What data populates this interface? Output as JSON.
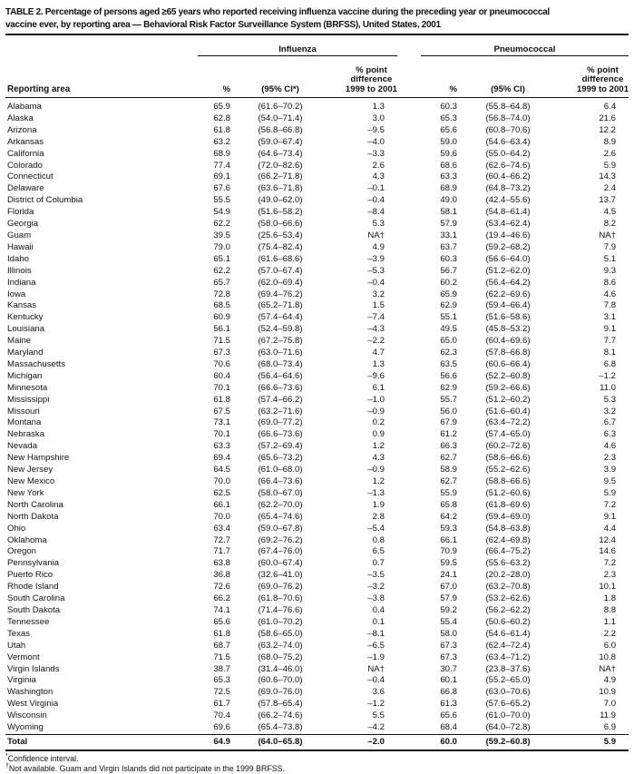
{
  "title": "TABLE 2. Percentage of persons aged ≥65 years who reported receiving influenza vaccine during the preceding year or pneumococcal\nvaccine ever, by reporting area — Behavioral Risk Factor Surveillance System (BRFSS), United States, 2001",
  "table": {
    "group_headers": [
      "Influenza",
      "Pneumococcal"
    ],
    "columns": {
      "reporting_area": "Reporting area",
      "pct": "%",
      "ci_flu": "(95% CI*)",
      "ci_pneu": "(95% CI)",
      "diff": "% point\ndifference\n1999 to 2001"
    },
    "rows": [
      {
        "area": "Alabama",
        "flu_pct": "65.9",
        "flu_ci": "(61.6–70.2)",
        "flu_diff": "1.3",
        "pneu_pct": "60.3",
        "pneu_ci": "(55.8–64.8)",
        "pneu_diff": "6.4"
      },
      {
        "area": "Alaska",
        "flu_pct": "62.8",
        "flu_ci": "(54.0–71.4)",
        "flu_diff": "3.0",
        "pneu_pct": "65.3",
        "pneu_ci": "(56.8–74.0)",
        "pneu_diff": "21.6"
      },
      {
        "area": "Arizona",
        "flu_pct": "61.8",
        "flu_ci": "(56.8–66.8)",
        "flu_diff": "–9.5",
        "pneu_pct": "65.6",
        "pneu_ci": "(60.8–70.6)",
        "pneu_diff": "12.2"
      },
      {
        "area": "Arkansas",
        "flu_pct": "63.2",
        "flu_ci": "(59.0–67.4)",
        "flu_diff": "–4.0",
        "pneu_pct": "59.0",
        "pneu_ci": "(54.6–63.4)",
        "pneu_diff": "8.9"
      },
      {
        "area": "California",
        "flu_pct": "68.9",
        "flu_ci": "(64.6–73.4)",
        "flu_diff": "–3.3",
        "pneu_pct": "59.6",
        "pneu_ci": "(55.0–64.2)",
        "pneu_diff": "2.6"
      },
      {
        "area": "Colorado",
        "flu_pct": "77.4",
        "flu_ci": "(72.0–82.6)",
        "flu_diff": "2.6",
        "pneu_pct": "68.6",
        "pneu_ci": "(62.6–74.6)",
        "pneu_diff": "5.9"
      },
      {
        "area": "Connecticut",
        "flu_pct": "69.1",
        "flu_ci": "(66.2–71.8)",
        "flu_diff": "4.3",
        "pneu_pct": "63.3",
        "pneu_ci": "(60.4–66.2)",
        "pneu_diff": "14.3"
      },
      {
        "area": "Delaware",
        "flu_pct": "67.6",
        "flu_ci": "(63.6–71.8)",
        "flu_diff": "–0.1",
        "pneu_pct": "68.9",
        "pneu_ci": "(64.8–73.2)",
        "pneu_diff": "2.4"
      },
      {
        "area": "District of Columbia",
        "flu_pct": "55.5",
        "flu_ci": "(49.0–62.0)",
        "flu_diff": "–0.4",
        "pneu_pct": "49.0",
        "pneu_ci": "(42.4–55.6)",
        "pneu_diff": "13.7"
      },
      {
        "area": "Florida",
        "flu_pct": "54.9",
        "flu_ci": "(51.6–58.2)",
        "flu_diff": "–8.4",
        "pneu_pct": "58.1",
        "pneu_ci": "(54.8–61.4)",
        "pneu_diff": "4.5"
      },
      {
        "area": "Georgia",
        "flu_pct": "62.2",
        "flu_ci": "(58.0–66.6)",
        "flu_diff": "5.3",
        "pneu_pct": "57.9",
        "pneu_ci": "(53.4–62.4)",
        "pneu_diff": "8.2"
      },
      {
        "area": "Guam",
        "flu_pct": "39.5",
        "flu_ci": "(25.6–53.4)",
        "flu_diff": "NA†",
        "pneu_pct": "33.1",
        "pneu_ci": "(19.4–46.6)",
        "pneu_diff": "NA†"
      },
      {
        "area": "Hawaii",
        "flu_pct": "79.0",
        "flu_ci": "(75.4–82.4)",
        "flu_diff": "4.9",
        "pneu_pct": "63.7",
        "pneu_ci": "(59.2–68.2)",
        "pneu_diff": "7.9"
      },
      {
        "area": "Idaho",
        "flu_pct": "65.1",
        "flu_ci": "(61.6–68.6)",
        "flu_diff": "–3.9",
        "pneu_pct": "60.3",
        "pneu_ci": "(56.6–64.0)",
        "pneu_diff": "5.1"
      },
      {
        "area": "Illinois",
        "flu_pct": "62.2",
        "flu_ci": "(57.0–67.4)",
        "flu_diff": "–5.3",
        "pneu_pct": "56.7",
        "pneu_ci": "(51.2–62.0)",
        "pneu_diff": "9.3"
      },
      {
        "area": "Indiana",
        "flu_pct": "65.7",
        "flu_ci": "(62.0–69.4)",
        "flu_diff": "–0.4",
        "pneu_pct": "60.2",
        "pneu_ci": "(56.4–64.2)",
        "pneu_diff": "8.6"
      },
      {
        "area": "Iowa",
        "flu_pct": "72.8",
        "flu_ci": "(69.4–76.2)",
        "flu_diff": "3.2",
        "pneu_pct": "65.9",
        "pneu_ci": "(62.2–69.6)",
        "pneu_diff": "4.6"
      },
      {
        "area": "Kansas",
        "flu_pct": "68.5",
        "flu_ci": "(65.2–71.8)",
        "flu_diff": "1.5",
        "pneu_pct": "62.9",
        "pneu_ci": "(59.4–66.4)",
        "pneu_diff": "7.8"
      },
      {
        "area": "Kentucky",
        "flu_pct": "60.9",
        "flu_ci": "(57.4–64.4)",
        "flu_diff": "–7.4",
        "pneu_pct": "55.1",
        "pneu_ci": "(51.6–58.6)",
        "pneu_diff": "3.1"
      },
      {
        "area": "Louisiana",
        "flu_pct": "56.1",
        "flu_ci": "(52.4–59.8)",
        "flu_diff": "–4.3",
        "pneu_pct": "49.5",
        "pneu_ci": "(45.8–53.2)",
        "pneu_diff": "9.1"
      },
      {
        "area": "Maine",
        "flu_pct": "71.5",
        "flu_ci": "(67.2–75.8)",
        "flu_diff": "–2.2",
        "pneu_pct": "65.0",
        "pneu_ci": "(60.4–69.6)",
        "pneu_diff": "7.7"
      },
      {
        "area": "Maryland",
        "flu_pct": "67.3",
        "flu_ci": "(63.0–71.6)",
        "flu_diff": "4.7",
        "pneu_pct": "62.3",
        "pneu_ci": "(57.8–66.8)",
        "pneu_diff": "8.1"
      },
      {
        "area": "Massachusetts",
        "flu_pct": "70.6",
        "flu_ci": "(68.0–73.4)",
        "flu_diff": "1.3",
        "pneu_pct": "63.5",
        "pneu_ci": "(60.6–66.4)",
        "pneu_diff": "6.8"
      },
      {
        "area": "Michigan",
        "flu_pct": "60.4",
        "flu_ci": "(56.4–64.6)",
        "flu_diff": "–9.6",
        "pneu_pct": "56.6",
        "pneu_ci": "(52.2–60.8)",
        "pneu_diff": "–1.2"
      },
      {
        "area": "Minnesota",
        "flu_pct": "70.1",
        "flu_ci": "(66.6–73.6)",
        "flu_diff": "6.1",
        "pneu_pct": "62.9",
        "pneu_ci": "(59.2–66.6)",
        "pneu_diff": "11.0"
      },
      {
        "area": "Mississippi",
        "flu_pct": "61.8",
        "flu_ci": "(57.4–66.2)",
        "flu_diff": "–1.0",
        "pneu_pct": "55.7",
        "pneu_ci": "(51.2–60.2)",
        "pneu_diff": "5.3"
      },
      {
        "area": "Missouri",
        "flu_pct": "67.5",
        "flu_ci": "(63.2–71.6)",
        "flu_diff": "–0.9",
        "pneu_pct": "56.0",
        "pneu_ci": "(51.6–60.4)",
        "pneu_diff": "3.2"
      },
      {
        "area": "Montana",
        "flu_pct": "73.1",
        "flu_ci": "(69.0–77.2)",
        "flu_diff": "0.2",
        "pneu_pct": "67.9",
        "pneu_ci": "(63.4–72.2)",
        "pneu_diff": "6.7"
      },
      {
        "area": "Nebraska",
        "flu_pct": "70.1",
        "flu_ci": "(66.6–73.6)",
        "flu_diff": "0.9",
        "pneu_pct": "61.2",
        "pneu_ci": "(57.4–65.0)",
        "pneu_diff": "6.3"
      },
      {
        "area": "Nevada",
        "flu_pct": "63.3",
        "flu_ci": "(57.2–69.4)",
        "flu_diff": "1.2",
        "pneu_pct": "66.3",
        "pneu_ci": "(60.2–72.6)",
        "pneu_diff": "4.6"
      },
      {
        "area": "New Hampshire",
        "flu_pct": "69.4",
        "flu_ci": "(65.6–73.2)",
        "flu_diff": "4.3",
        "pneu_pct": "62.7",
        "pneu_ci": "(58.6–66.6)",
        "pneu_diff": "2.3"
      },
      {
        "area": "New Jersey",
        "flu_pct": "64.5",
        "flu_ci": "(61.0–68.0)",
        "flu_diff": "–0.9",
        "pneu_pct": "58.9",
        "pneu_ci": "(55.2–62.6)",
        "pneu_diff": "3.9"
      },
      {
        "area": "New Mexico",
        "flu_pct": "70.0",
        "flu_ci": "(66.4–73.6)",
        "flu_diff": "1.2",
        "pneu_pct": "62.7",
        "pneu_ci": "(58.8–66.6)",
        "pneu_diff": "9.5"
      },
      {
        "area": "New York",
        "flu_pct": "62.5",
        "flu_ci": "(58.0–67.0)",
        "flu_diff": "–1.3",
        "pneu_pct": "55.9",
        "pneu_ci": "(51.2–60.6)",
        "pneu_diff": "5.9"
      },
      {
        "area": "North Carolina",
        "flu_pct": "66.1",
        "flu_ci": "(62.2–70.0)",
        "flu_diff": "1.9",
        "pneu_pct": "65.8",
        "pneu_ci": "(61.8–69.6)",
        "pneu_diff": "7.2"
      },
      {
        "area": "North Dakota",
        "flu_pct": "70.0",
        "flu_ci": "(65.4–74.6)",
        "flu_diff": "2.8",
        "pneu_pct": "64.2",
        "pneu_ci": "(59.4–69.0)",
        "pneu_diff": "9.1"
      },
      {
        "area": "Ohio",
        "flu_pct": "63.4",
        "flu_ci": "(59.0–67.8)",
        "flu_diff": "–5.4",
        "pneu_pct": "59.3",
        "pneu_ci": "(54.8–63.8)",
        "pneu_diff": "4.4"
      },
      {
        "area": "Oklahoma",
        "flu_pct": "72.7",
        "flu_ci": "(69.2–76.2)",
        "flu_diff": "0.8",
        "pneu_pct": "66.1",
        "pneu_ci": "(62.4–69.8)",
        "pneu_diff": "12.4"
      },
      {
        "area": "Oregon",
        "flu_pct": "71.7",
        "flu_ci": "(67.4–76.0)",
        "flu_diff": "6.5",
        "pneu_pct": "70.9",
        "pneu_ci": "(66.4–75.2)",
        "pneu_diff": "14.6"
      },
      {
        "area": "Pennsylvania",
        "flu_pct": "63.8",
        "flu_ci": "(60.0–67.4)",
        "flu_diff": "0.7",
        "pneu_pct": "59.5",
        "pneu_ci": "(55.6–63.2)",
        "pneu_diff": "7.2"
      },
      {
        "area": "Puerto Rico",
        "flu_pct": "36.8",
        "flu_ci": "(32.6–41.0)",
        "flu_diff": "–3.5",
        "pneu_pct": "24.1",
        "pneu_ci": "(20.2–28.0)",
        "pneu_diff": "2.3"
      },
      {
        "area": "Rhode Island",
        "flu_pct": "72.6",
        "flu_ci": "(69.0–76.2)",
        "flu_diff": "–3.2",
        "pneu_pct": "67.0",
        "pneu_ci": "(63.2–70.8)",
        "pneu_diff": "10.1"
      },
      {
        "area": "South Carolina",
        "flu_pct": "66.2",
        "flu_ci": "(61.8–70.6)",
        "flu_diff": "–3.8",
        "pneu_pct": "57.9",
        "pneu_ci": "(53.2–62.6)",
        "pneu_diff": "1.8"
      },
      {
        "area": "South Dakota",
        "flu_pct": "74.1",
        "flu_ci": "(71.4–76.6)",
        "flu_diff": "0.4",
        "pneu_pct": "59.2",
        "pneu_ci": "(56.2–62.2)",
        "pneu_diff": "8.8"
      },
      {
        "area": "Tennessee",
        "flu_pct": "65.6",
        "flu_ci": "(61.0–70.2)",
        "flu_diff": "0.1",
        "pneu_pct": "55.4",
        "pneu_ci": "(50.6–60.2)",
        "pneu_diff": "1.1"
      },
      {
        "area": "Texas",
        "flu_pct": "61.8",
        "flu_ci": "(58.6–65.0)",
        "flu_diff": "–8.1",
        "pneu_pct": "58.0",
        "pneu_ci": "(54.6–61.4)",
        "pneu_diff": "2.2"
      },
      {
        "area": "Utah",
        "flu_pct": "68.7",
        "flu_ci": "(63.2–74.0)",
        "flu_diff": "–6.5",
        "pneu_pct": "67.3",
        "pneu_ci": "(62.4–72.4)",
        "pneu_diff": "6.0"
      },
      {
        "area": "Vermont",
        "flu_pct": "71.5",
        "flu_ci": "(68.0–75.2)",
        "flu_diff": "–1.9",
        "pneu_pct": "67.3",
        "pneu_ci": "(63.4–71.2)",
        "pneu_diff": "10.8"
      },
      {
        "area": "Virgin Islands",
        "flu_pct": "38.7",
        "flu_ci": "(31.4–46.0)",
        "flu_diff": "NA†",
        "pneu_pct": "30.7",
        "pneu_ci": "(23.8–37.6)",
        "pneu_diff": "NA†"
      },
      {
        "area": "Virginia",
        "flu_pct": "65.3",
        "flu_ci": "(60.6–70.0)",
        "flu_diff": "–0.4",
        "pneu_pct": "60.1",
        "pneu_ci": "(55.2–65.0)",
        "pneu_diff": "4.9"
      },
      {
        "area": "Washington",
        "flu_pct": "72.5",
        "flu_ci": "(69.0–76.0)",
        "flu_diff": "3.6",
        "pneu_pct": "66.8",
        "pneu_ci": "(63.0–70.6)",
        "pneu_diff": "10.9"
      },
      {
        "area": "West Virginia",
        "flu_pct": "61.7",
        "flu_ci": "(57.8–65.4)",
        "flu_diff": "–1.2",
        "pneu_pct": "61.3",
        "pneu_ci": "(57.6–65.2)",
        "pneu_diff": "7.0"
      },
      {
        "area": "Wisconsin",
        "flu_pct": "70.4",
        "flu_ci": "(66.2–74.6)",
        "flu_diff": "5.5",
        "pneu_pct": "65.6",
        "pneu_ci": "(61.0–70.0)",
        "pneu_diff": "11.9"
      },
      {
        "area": "Wyoming",
        "flu_pct": "69.6",
        "flu_ci": "(65.4–73.8)",
        "flu_diff": "–4.2",
        "pneu_pct": "68.4",
        "pneu_ci": "(64.0–72.8)",
        "pneu_diff": "6.9"
      }
    ],
    "total": {
      "area": "Total",
      "flu_pct": "64.9",
      "flu_ci": "(64.0–65.8)",
      "flu_diff": "–2.0",
      "pneu_pct": "60.0",
      "pneu_ci": "(59.2–60.8)",
      "pneu_diff": "5.9"
    }
  },
  "footnotes": [
    {
      "marker": "*",
      "text": "Confidence interval."
    },
    {
      "marker": "†",
      "text": "Not available. Guam and Virgin Islands did not participate in the 1999 BRFSS."
    }
  ]
}
